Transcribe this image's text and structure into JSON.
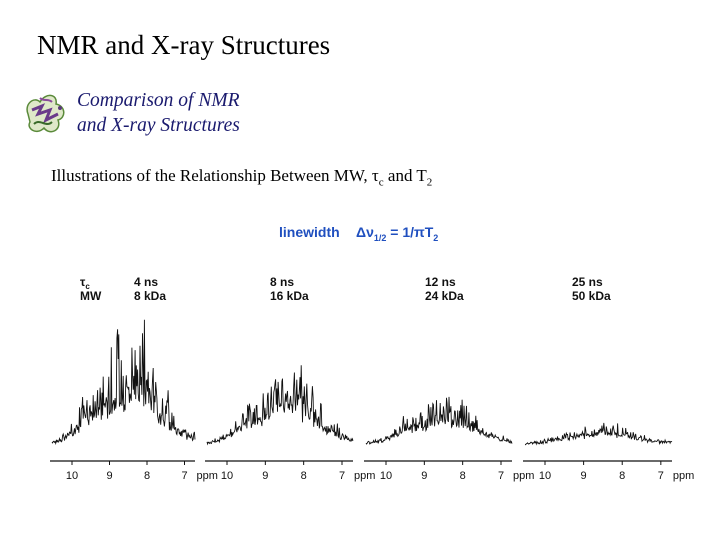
{
  "slide": {
    "title": "NMR and X-ray Structures",
    "subtitle_line1": "Comparison of NMR",
    "subtitle_line2": "and X-ray Structures",
    "illustration_prefix": "Illustrations of the Relationship Between MW, ",
    "tau_symbol": "τ",
    "tau_sub": "c",
    "illustration_middle": " and T",
    "t2_sub": "2"
  },
  "figure": {
    "linewidth_label": "linewidth",
    "formula_delta_nu": "Δν",
    "formula_sub": "1/2",
    "formula_eq": " = 1/πT",
    "formula_t_sub": "2",
    "row_tau_label": "τ",
    "row_tau_sub": "c",
    "row_mw_label": "MW",
    "axis_unit": "ppm",
    "colors": {
      "blue": "#1f4fbf",
      "ink": "#111111"
    },
    "panels": [
      {
        "tau": "4 ns",
        "mw": "8 kDa",
        "ticks": [
          "10",
          "9",
          "8",
          "7"
        ]
      },
      {
        "tau": "8 ns",
        "mw": "16 kDa",
        "ticks": [
          "10",
          "9",
          "8",
          "7"
        ]
      },
      {
        "tau": "12 ns",
        "mw": "24 kDa",
        "ticks": [
          "10",
          "9",
          "8",
          "7"
        ]
      },
      {
        "tau": "25 ns",
        "mw": "50 kDa",
        "ticks": [
          "10",
          "9",
          "8",
          "7"
        ]
      }
    ]
  }
}
